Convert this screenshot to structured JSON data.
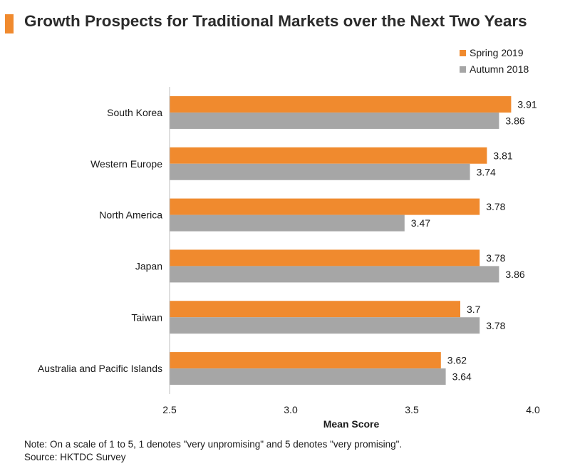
{
  "header": {
    "title": "Growth Prospects for Traditional Markets over the Next Two Years"
  },
  "footer": {
    "note": "Note: On a scale of 1 to 5, 1 denotes \"very unpromising\" and 5 denotes \"very promising\".",
    "source": "Source: HKTDC Survey"
  },
  "colors": {
    "accent": "#f08a2e",
    "spring": "#f08a2e",
    "autumn": "#a6a6a6"
  },
  "chart_data": {
    "type": "bar",
    "orientation": "horizontal",
    "categories": [
      "South Korea",
      "Western Europe",
      "North America",
      "Japan",
      "Taiwan",
      "Australia and Pacific Islands"
    ],
    "series": [
      {
        "name": "Spring 2019",
        "values": [
          3.91,
          3.81,
          3.78,
          3.78,
          3.7,
          3.62
        ],
        "labels": [
          "3.91",
          "3.81",
          "3.78",
          "3.78",
          "3.7",
          "3.62"
        ]
      },
      {
        "name": "Autumn 2018",
        "values": [
          3.86,
          3.74,
          3.47,
          3.86,
          3.78,
          3.64
        ],
        "labels": [
          "3.86",
          "3.74",
          "3.47",
          "3.86",
          "3.78",
          "3.64"
        ]
      }
    ],
    "xlabel": "Mean Score",
    "ylabel": "",
    "xlim": [
      2.5,
      4.0
    ],
    "xticks": [
      "2.5",
      "3.0",
      "3.5",
      "4.0"
    ],
    "grid": false,
    "legend_position": "top-right"
  }
}
